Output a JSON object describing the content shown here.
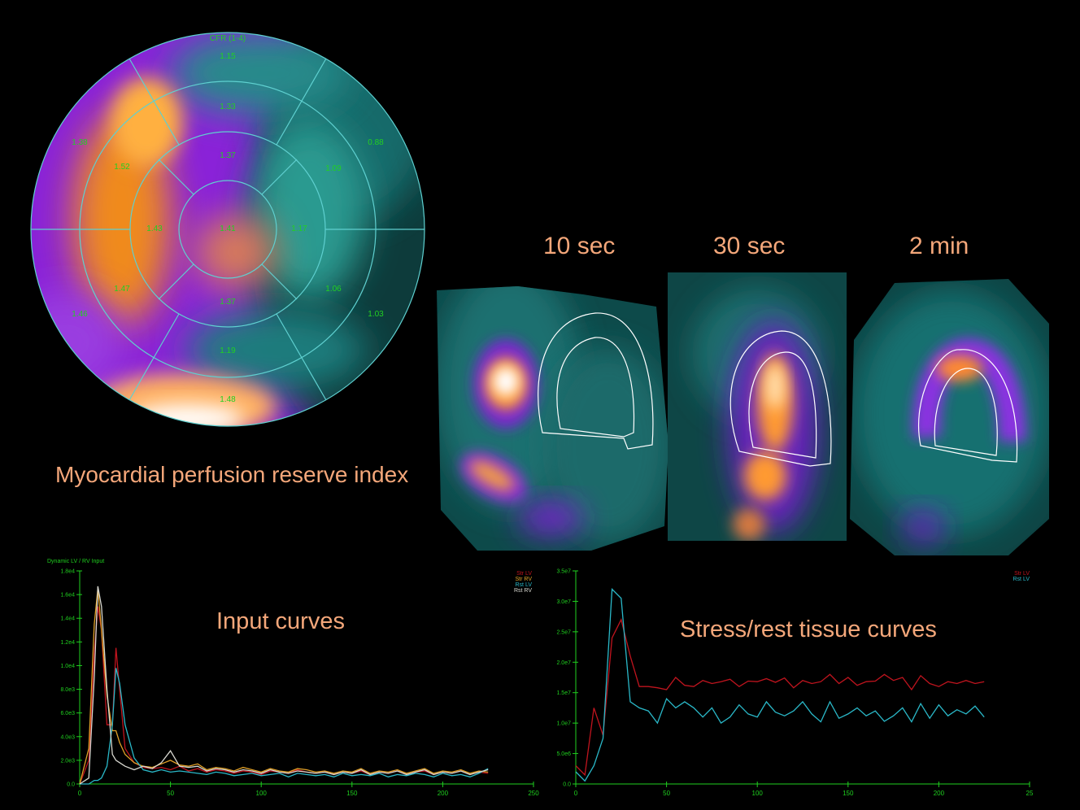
{
  "labels": {
    "polar_title": "Myocardial perfusion reserve index",
    "panel_10": "10 sec",
    "panel_30": "30 sec",
    "panel_2m": "2 min",
    "input_title": "Input curves",
    "tissue_title": "Stress/rest tissue curves"
  },
  "colors": {
    "annotation": "#f4a77a",
    "segment_text": "#22d022",
    "grid_line": "#5fd0d0",
    "stress_lv": "#c0141e",
    "stress_rv": "#e0a028",
    "rest_lv": "#2ab8c8",
    "rest_rv": "#d8d8d0"
  },
  "polar_map": {
    "title": "CFR (1-4)",
    "segments": [
      "1.15",
      "1.33",
      "1.37",
      "1.41",
      "0.88",
      "1.09",
      "1.17",
      "1.03",
      "1.06",
      "1.19",
      "1.48",
      "1.37",
      "1.46",
      "1.47",
      "1.43",
      "1.38",
      "1.52"
    ]
  },
  "chart_data": [
    {
      "type": "line",
      "title": "Dynamic LV / RV Input",
      "xlim": [
        0,
        250
      ],
      "ylim": [
        0,
        18000
      ],
      "x_ticks": [
        "0",
        "50",
        "100",
        "150",
        "200",
        "250"
      ],
      "y_ticks": [
        "0.0",
        "2.0e3",
        "4.0e3",
        "6.0e3",
        "8.0e3",
        "1.0e4",
        "1.2e4",
        "1.4e4",
        "1.6e4",
        "1.8e4"
      ],
      "x": [
        0,
        5,
        8,
        10,
        12,
        15,
        18,
        20,
        22,
        25,
        30,
        35,
        40,
        45,
        50,
        55,
        60,
        65,
        70,
        75,
        80,
        85,
        90,
        95,
        100,
        105,
        110,
        115,
        120,
        125,
        130,
        135,
        140,
        145,
        150,
        155,
        160,
        165,
        170,
        175,
        180,
        185,
        190,
        195,
        200,
        205,
        210,
        215,
        220,
        225
      ],
      "series": [
        {
          "name": "Str LV",
          "color": "#c0141e",
          "values": [
            0,
            2000,
            11000,
            15000,
            13000,
            5000,
            5000,
            11500,
            8000,
            3000,
            1800,
            1400,
            1300,
            1400,
            1200,
            1500,
            1100,
            1300,
            1000,
            1200,
            1100,
            900,
            1100,
            1000,
            800,
            1100,
            1000,
            900,
            1200,
            1000,
            900,
            1000,
            800,
            1000,
            900,
            1100,
            800,
            1000,
            900,
            1100,
            800,
            1000,
            1100,
            800,
            1000,
            900,
            1100,
            800,
            1000,
            900
          ]
        },
        {
          "name": "Str RV",
          "color": "#e0a028",
          "values": [
            0,
            3000,
            13500,
            16500,
            13000,
            7500,
            4500,
            4500,
            3500,
            2500,
            1800,
            1500,
            1400,
            1700,
            2000,
            1600,
            1500,
            1700,
            1200,
            1400,
            1300,
            1100,
            1400,
            1200,
            1000,
            1300,
            1100,
            1000,
            1300,
            1200,
            1000,
            1100,
            900,
            1100,
            1000,
            1300,
            900,
            1100,
            1000,
            1200,
            900,
            1100,
            1300,
            900,
            1100,
            1000,
            1200,
            900,
            1100,
            1000
          ]
        },
        {
          "name": "Rst LV",
          "color": "#2ab8c8",
          "values": [
            0,
            0,
            300,
            300,
            500,
            1500,
            5000,
            9800,
            8500,
            5000,
            2200,
            1200,
            1000,
            1200,
            1000,
            1100,
            1000,
            900,
            800,
            1000,
            900,
            700,
            800,
            900,
            700,
            800,
            900,
            600,
            900,
            800,
            700,
            800,
            600,
            900,
            700,
            800,
            700,
            900,
            600,
            800,
            700,
            900,
            800,
            600,
            900,
            700,
            800,
            600,
            900,
            1300
          ]
        },
        {
          "name": "Rst RV",
          "color": "#d8d8d0",
          "values": [
            0,
            500,
            9000,
            16700,
            15000,
            8000,
            2500,
            2000,
            1800,
            1500,
            1200,
            1500,
            1300,
            1800,
            2800,
            1500,
            1400,
            1500,
            1100,
            1300,
            1200,
            1000,
            1200,
            1100,
            900,
            1200,
            1000,
            900,
            1100,
            1000,
            900,
            1000,
            800,
            1000,
            900,
            1200,
            800,
            1000,
            900,
            1100,
            800,
            1000,
            1200,
            800,
            1000,
            900,
            1100,
            800,
            1000,
            1200
          ]
        }
      ]
    },
    {
      "type": "line",
      "title": "",
      "xlim": [
        0,
        25
      ],
      "ylim": [
        0,
        35000000
      ],
      "x_ticks": [
        "0",
        "50",
        "100",
        "150",
        "200",
        "25"
      ],
      "y_ticks": [
        "0.0",
        "5.0e6",
        "1.0e7",
        "1.5e7",
        "2.0e7",
        "2.5e7",
        "3.0e7",
        "3.5e7"
      ],
      "x": [
        0,
        0.5,
        1,
        1.5,
        2,
        2.5,
        3,
        3.5,
        4,
        4.5,
        5,
        5.5,
        6,
        6.5,
        7,
        7.5,
        8,
        8.5,
        9,
        9.5,
        10,
        10.5,
        11,
        11.5,
        12,
        12.5,
        13,
        13.5,
        14,
        14.5,
        15,
        15.5,
        16,
        16.5,
        17,
        17.5,
        18,
        18.5,
        19,
        19.5,
        20,
        20.5,
        21,
        21.5,
        22,
        22.5
      ],
      "series": [
        {
          "name": "Str LV",
          "color": "#c0141e",
          "values": [
            3000000,
            1500000,
            12500000,
            8000000,
            24000000,
            27000000,
            21000000,
            16000000,
            16000000,
            15800000,
            15500000,
            17500000,
            16200000,
            16000000,
            17000000,
            16500000,
            16800000,
            17200000,
            16000000,
            16900000,
            16800000,
            17300000,
            16700000,
            17400000,
            15800000,
            17000000,
            16500000,
            16800000,
            18000000,
            16500000,
            17500000,
            16200000,
            16800000,
            16900000,
            18000000,
            17000000,
            17500000,
            15500000,
            17800000,
            16500000,
            16000000,
            16800000,
            16500000,
            17000000,
            16500000,
            16800000
          ]
        },
        {
          "name": "Rst LV",
          "color": "#2ab8c8",
          "values": [
            2000000,
            500000,
            3000000,
            7500000,
            32000000,
            30500000,
            13500000,
            12500000,
            12000000,
            10000000,
            14000000,
            12500000,
            13500000,
            12500000,
            11000000,
            12500000,
            10000000,
            11000000,
            13000000,
            11500000,
            11000000,
            13500000,
            11800000,
            11200000,
            12000000,
            13500000,
            11500000,
            10200000,
            13500000,
            10800000,
            11500000,
            12500000,
            11200000,
            12000000,
            10300000,
            11200000,
            12500000,
            10200000,
            13200000,
            10800000,
            13000000,
            11200000,
            12200000,
            11500000,
            12800000,
            11000000
          ]
        }
      ]
    }
  ]
}
